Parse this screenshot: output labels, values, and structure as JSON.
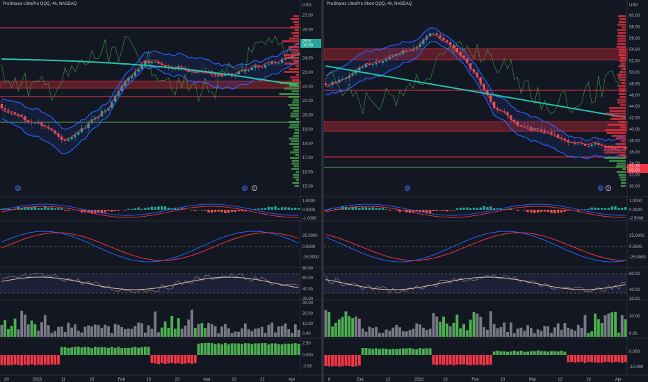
{
  "left": {
    "title": "ProShares UltraPro QQQ, 4h, NASDAQ",
    "currency": "USD",
    "price_ticks": [
      "27.00",
      "26.00",
      "25.00",
      "24.00",
      "23.00",
      "22.00",
      "21.00",
      "20.00",
      "19.00",
      "18.00",
      "17.00",
      "16.00",
      "15.00"
    ],
    "price_label_top": "25.8",
    "price_label_bottom": "00:00",
    "macd_ticks": [
      "1.0000",
      "0.0000",
      "-1.0000"
    ],
    "osc_ticks": [
      "25.0000",
      "0.0000",
      "-25.0000"
    ],
    "rsi_ticks": [
      "80.00",
      "60.00",
      "40.00",
      "20.00"
    ],
    "vol_ticks": [
      "30.00",
      "20.00",
      "10.00",
      "0.00"
    ],
    "mom_ticks": [
      "2.50",
      "0.000",
      "-2.50"
    ],
    "time_ticks": [
      "20",
      "2023",
      "11",
      "23",
      "Feb",
      "13",
      "23",
      "Mar",
      "13",
      "21",
      "Apr"
    ],
    "event_badges": [
      "D",
      "D",
      "3"
    ]
  },
  "right": {
    "title": "ProShares UltraPro Short QQQ, 4h, NASDAQ",
    "currency": "USD",
    "price_ticks": [
      "60.00",
      "58.00",
      "56.00",
      "54.00",
      "52.00",
      "50.00",
      "48.00",
      "46.00",
      "44.00",
      "42.00",
      "40.00",
      "38.00",
      "36.00",
      "34.00",
      "32.00",
      "30.00"
    ],
    "price_label_top": "32.25",
    "price_label_bottom": "00:00",
    "macd_ticks": [
      "1.0000",
      "0.0000",
      "-2.5000"
    ],
    "osc_ticks": [
      "25.0000",
      "0.0000",
      "-25.0000"
    ],
    "rsi_ticks": [
      "60.00",
      "40.00",
      "20.00"
    ],
    "vol_ticks": [
      "20.00",
      "0.00"
    ],
    "mom_ticks": [
      "0.000",
      "-10.000"
    ],
    "time_ticks": [
      "8",
      "Dec",
      "12",
      "2023",
      "13",
      "Feb",
      "13",
      "Mar",
      "13",
      "22",
      "Apr"
    ],
    "event_badges": [
      "D",
      "D",
      "3"
    ]
  }
}
